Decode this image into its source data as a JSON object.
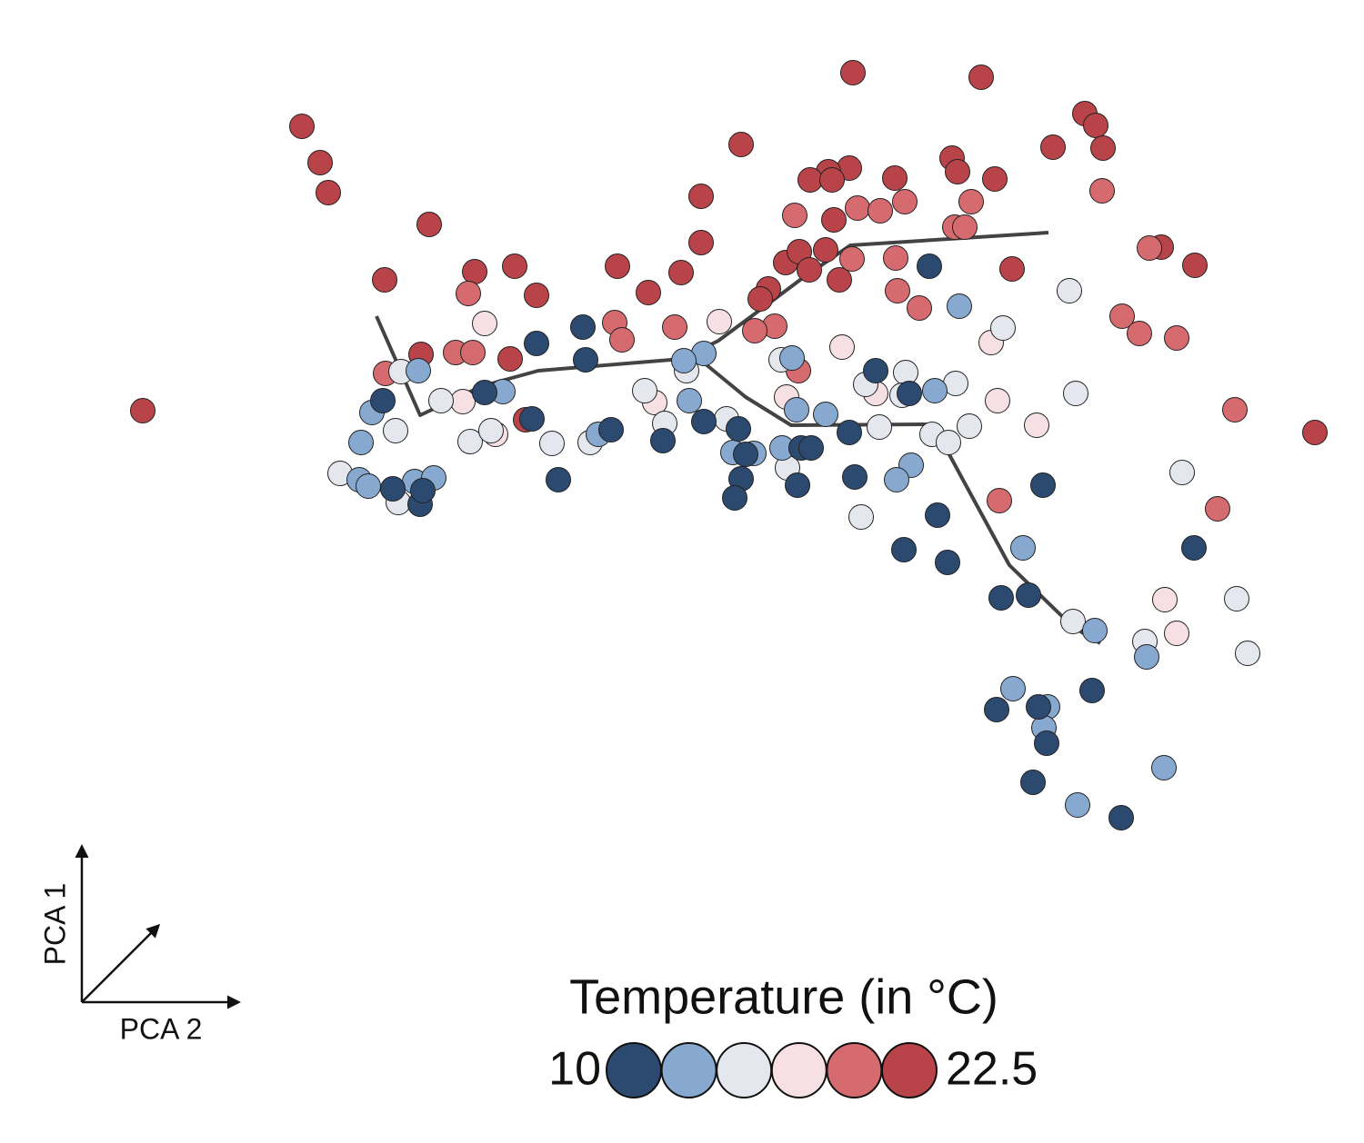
{
  "chart_data": {
    "type": "scatter",
    "legend_title": "Temperature (in °C)",
    "x_axis_label": "PCA 2",
    "y_axis_label": "PCA 1",
    "xlim": [
      -8,
      7
    ],
    "ylim": [
      -7.58,
      5
    ],
    "color_scale": {
      "values": [
        10,
        12.5,
        15,
        17.5,
        20,
        22.5
      ],
      "colors": [
        "#2c4a70",
        "#87a9d0",
        "#e4e8ee",
        "#f6e0e3",
        "#d56a6f",
        "#b8444a"
      ]
    },
    "x": [
      1.38,
      2.79,
      -4.68,
      -4.48,
      -4.39,
      0.15,
      3.93,
      4.05,
      4.13,
      3.58,
      1.34,
      1.11,
      0.91,
      1.15,
      1.84,
      2.47,
      2.53,
      2.94,
      -0.29,
      -3.28,
      -0.29,
      -3.77,
      -2.78,
      -2.34,
      -1.21,
      -2.1,
      -0.51,
      -0.87,
      1.17,
      3.13,
      5.14,
      0.64,
      0.79,
      1.08,
      1.23,
      0.9,
      0.45,
      0.36,
      -3.37,
      -2.39,
      -2.22,
      6.46,
      -6.43,
      4.77,
      4.12,
      0.74,
      1.43,
      1.68,
      1.95,
      2.68,
      2.5,
      2.61,
      1.85,
      1.37,
      1.87,
      2.11,
      4.64,
      4.34,
      4.53,
      4.94,
      5.58,
      5.39,
      2.99,
      -2.85,
      -1.24,
      -1.16,
      -0.58,
      -2.99,
      -2.8,
      -3.76,
      0.52,
      0.3,
      0.78,
      -2.67,
      -0.09,
      1.26,
      2.9,
      -2.91,
      -2.55,
      -0.8,
      0.65,
      1.63,
      2.97,
      3.4,
      4.81,
      4.94,
      3.76,
      3.03,
      -3.59,
      -3.65,
      -3.15,
      -2.83,
      -1.93,
      -1.51,
      -0.91,
      -0.69,
      -0.45,
      0.59,
      1.96,
      1.52,
      1.92,
      2.51,
      2.25,
      2.43,
      2.66,
      1.67,
      3.83,
      5.0,
      -4.26,
      -3.62,
      1.47,
      0.66,
      3.8,
      4.59,
      5.6,
      5.72,
      -2.6,
      -0.01,
      -3.4,
      -3.91,
      -4.03,
      -4.05,
      -3.95,
      -3.44,
      -3.23,
      -2.47,
      -0.42,
      -0.26,
      -0.48,
      0.71,
      0.76,
      1.08,
      0.6,
      0.29,
      0.06,
      2.55,
      2.28,
      2.02,
      1.86,
      3.25,
      4.04,
      4.61,
      3.14,
      3.52,
      3.48,
      4.8,
      3.85,
      -1.42,
      -3.79,
      -3.68,
      -3.38,
      -3.35,
      -2.67,
      -2.1,
      -1.59,
      -1.56,
      -1.86,
      -1.28,
      -0.71,
      -0.26,
      0.12,
      0.2,
      0.15,
      0.08,
      0.77,
      0.81,
      0.92,
      1.34,
      1.63,
      2.0,
      1.4,
      2.22,
      2.31,
      1.94,
      2.42,
      3.47,
      3.01,
      3.31,
      5.13,
      4.01,
      2.96,
      3.42,
      3.51,
      3.36,
      4.33,
      -2.15
    ],
    "y": [
      4.2,
      4.15,
      3.61,
      3.21,
      2.88,
      3.41,
      3.75,
      3.62,
      3.37,
      3.38,
      3.15,
      3.11,
      3.02,
      3.02,
      3.04,
      3.26,
      3.11,
      3.03,
      2.84,
      2.53,
      2.33,
      1.92,
      2.01,
      2.07,
      2.07,
      1.75,
      2.0,
      1.78,
      2.58,
      2.04,
      2.08,
      2.11,
      2.23,
      2.25,
      1.92,
      2.03,
      1.82,
      1.71,
      1.1,
      1.05,
      0.38,
      0.24,
      0.48,
      2.28,
      2.9,
      2.63,
      2.71,
      2.68,
      2.78,
      2.78,
      2.5,
      2.5,
      2.16,
      2.15,
      1.8,
      1.61,
      2.27,
      1.52,
      1.33,
      1.28,
      0.49,
      -0.6,
      -0.51,
      1.77,
      1.45,
      1.26,
      1.4,
      1.12,
      1.12,
      0.89,
      1.41,
      1.36,
      0.92,
      1.44,
      1.46,
      1.18,
      1.23,
      0.58,
      0.22,
      0.57,
      0.63,
      0.67,
      0.59,
      0.32,
      -1.6,
      -1.97,
      1.8,
      1.39,
      0.91,
      0.26,
      0.59,
      0.14,
      0.12,
      0.13,
      0.7,
      0.34,
      0.92,
      1.04,
      0.9,
      0.77,
      0.65,
      0.78,
      0.22,
      0.13,
      0.31,
      0.3,
      0.67,
      -0.2,
      -0.21,
      -0.53,
      -0.69,
      -0.15,
      -1.84,
      -2.06,
      -1.59,
      -2.19,
      0.26,
      0.39,
      0.92,
      0.46,
      0.13,
      -0.28,
      -0.35,
      -0.3,
      -0.26,
      0.69,
      0.59,
      1.11,
      1.03,
      1.06,
      0.49,
      0.44,
      0.07,
      0.01,
      0.02,
      1.63,
      0.7,
      -0.12,
      -0.28,
      -1.03,
      -1.94,
      -2.23,
      -2.58,
      -2.78,
      -3.01,
      -3.45,
      -3.86,
      0.22,
      0.59,
      -0.38,
      -0.55,
      -0.4,
      0.68,
      1.22,
      1.4,
      1.04,
      -0.28,
      0.27,
      0.15,
      0.36,
      0.28,
      0.0,
      -0.27,
      -0.48,
      -0.34,
      0.07,
      0.07,
      0.24,
      0.92,
      0.67,
      -0.25,
      2.07,
      -0.67,
      -1.05,
      -1.19,
      -0.34,
      -1.58,
      -1.55,
      -1.03,
      -2.6,
      -2.81,
      -2.78,
      -3.18,
      -3.61,
      -4.0,
      0.39
    ],
    "temperature": [
      22.5,
      22.5,
      22.5,
      22.5,
      22.5,
      22.5,
      22.5,
      22.5,
      22.5,
      22.5,
      22.5,
      22.5,
      22.5,
      22.5,
      22.5,
      22.5,
      22.5,
      22.5,
      22.5,
      22.5,
      22.5,
      22.5,
      22.5,
      22.5,
      22.5,
      22.5,
      22.5,
      22.5,
      22.5,
      22.5,
      22.5,
      22.5,
      22.5,
      22.5,
      22.5,
      22.5,
      22.5,
      22.5,
      22.5,
      22.5,
      22.5,
      22.5,
      22.5,
      22.5,
      20,
      20,
      20,
      20,
      20,
      20,
      20,
      20,
      20,
      20,
      20,
      20,
      20,
      20,
      20,
      20,
      20,
      20,
      20,
      20,
      20,
      20,
      20,
      20,
      20,
      20,
      20,
      20,
      20,
      17.5,
      17.5,
      17.5,
      17.5,
      17.5,
      17.5,
      17.5,
      17.5,
      17.5,
      17.5,
      17.5,
      17.5,
      17.5,
      15,
      15,
      15,
      15,
      15,
      15,
      15,
      15,
      15,
      15,
      15,
      15,
      15,
      15,
      15,
      15,
      15,
      15,
      15,
      15,
      15,
      15,
      15,
      15,
      15,
      15,
      15,
      15,
      15,
      15,
      15,
      15,
      12.5,
      12.5,
      12.5,
      12.5,
      12.5,
      12.5,
      12.5,
      12.5,
      12.5,
      12.5,
      12.5,
      12.5,
      12.5,
      12.5,
      12.5,
      12.5,
      12.5,
      12.5,
      12.5,
      12.5,
      12.5,
      12.5,
      12.5,
      12.5,
      12.5,
      12.5,
      12.5,
      12.5,
      12.5,
      12.5,
      10,
      10,
      10,
      10,
      10,
      10,
      10,
      10,
      10,
      10,
      10,
      10,
      10,
      10,
      10,
      10,
      10,
      10,
      10,
      10,
      10,
      10,
      10,
      10,
      10,
      10,
      10,
      10,
      10,
      10,
      10,
      10,
      10,
      10,
      10,
      10,
      10,
      10
    ],
    "lines": [
      {
        "color": "#222222",
        "x": [
          -3.86,
          -3.38,
          -2.7,
          -2.08,
          -0.5,
          -0.1,
          0.4,
          0.8,
          1.35,
          3.53
        ],
        "y": [
          1.52,
          0.43,
          0.75,
          0.92,
          1.05,
          1.25,
          1.62,
          1.92,
          2.3,
          2.44
        ]
      },
      {
        "color": "#222222",
        "x": [
          -0.25,
          0.2,
          0.7,
          2.26,
          2.6,
          3.1,
          3.8,
          4.1
        ],
        "y": [
          1.0,
          0.63,
          0.32,
          0.33,
          -0.3,
          -1.22,
          -1.9,
          -2.08
        ]
      }
    ]
  }
}
